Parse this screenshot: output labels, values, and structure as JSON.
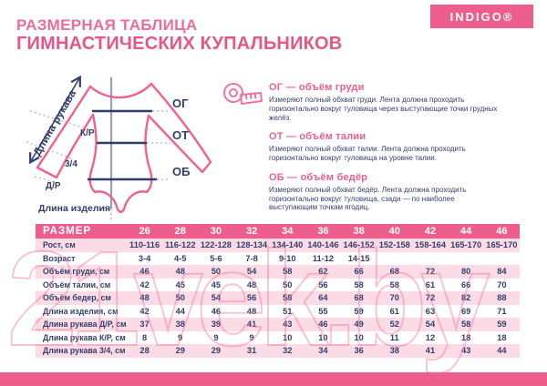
{
  "header": {
    "title_line1": "РАЗМЕРНАЯ ТАБЛИЦА",
    "title_line2": "ГИМНАСТИЧЕСКИХ КУПАЛЬНИКОВ",
    "brand": "INDIGO®"
  },
  "diagram": {
    "sleeve_length_label": "Длина рукава",
    "chest_label": "ОГ",
    "waist_label": "ОТ",
    "hips_label": "ОБ",
    "short_sleeve_label": "К/Р",
    "three_quarter_label": "3/4",
    "long_sleeve_label": "Д/Р",
    "item_length_label": "Длина изделия"
  },
  "measurements": [
    {
      "heading": "ОГ — объём груди",
      "body": "Измеряют полный обхват груди. Лента должна проходить горизонтально вокруг туловища через выступающие точки грудных желёз."
    },
    {
      "heading": "ОТ — объём талии",
      "body": "Измеряют полный обхват талии. Лента должна проходить горизонтально вокруг туловища на уровне талии."
    },
    {
      "heading": "ОБ — объём бедёр",
      "body": "Измеряют полный обхват бедёр. Лента должна проходить горизонтально вокруг туловища, сзади — по наиболее выступающим точкам ягодиц."
    }
  ],
  "table": {
    "header_label": "РАЗМЕР",
    "sizes": [
      "26",
      "28",
      "30",
      "32",
      "34",
      "36",
      "38",
      "40",
      "42",
      "44",
      "46"
    ],
    "rows": [
      {
        "label": "Рост, см",
        "values": [
          "110-116",
          "116-122",
          "122-128",
          "128-134",
          "134-140",
          "140-146",
          "146-152",
          "152-158",
          "158-164",
          "165-170",
          "165-170"
        ]
      },
      {
        "label": "Возраст",
        "values": [
          "3-4",
          "4-5",
          "5-6",
          "7-8",
          "9-10",
          "11-12",
          "14-15",
          "",
          "",
          "",
          ""
        ]
      },
      {
        "label": "Объём груди, см",
        "values": [
          "46",
          "48",
          "50",
          "54",
          "58",
          "62",
          "66",
          "68",
          "72",
          "80",
          "84"
        ]
      },
      {
        "label": "Объём талии, см",
        "values": [
          "42",
          "45",
          "45",
          "48",
          "50",
          "56",
          "58",
          "58",
          "61",
          "66",
          "70"
        ]
      },
      {
        "label": "Объём бедер, см",
        "values": [
          "48",
          "50",
          "54",
          "56",
          "58",
          "64",
          "68",
          "70",
          "72",
          "82",
          "88"
        ]
      },
      {
        "label": "Длина изделия, см",
        "values": [
          "42",
          "44",
          "46",
          "48",
          "51",
          "55",
          "59",
          "61",
          "63",
          "69",
          "71"
        ]
      },
      {
        "label": "Длина рукава Д/Р, см",
        "values": [
          "37",
          "38",
          "39",
          "41",
          "43",
          "46",
          "49",
          "52",
          "54",
          "58",
          "59"
        ]
      },
      {
        "label": "Длина рукава К/Р, см",
        "values": [
          "8",
          "9",
          "9",
          "9",
          "10",
          "10",
          "10",
          "11",
          "12",
          "18",
          "18"
        ]
      },
      {
        "label": "Длина рукава 3/4, см",
        "values": [
          "28",
          "29",
          "29",
          "31",
          "32",
          "34",
          "36",
          "38",
          "41",
          "43",
          "44"
        ]
      }
    ]
  },
  "watermark": {
    "text": "21vek.by"
  },
  "colors": {
    "accent": "#ee5e8d",
    "accent-light": "#f0739c",
    "row-pink": "#fbdbe5",
    "navy": "#333e6b",
    "line-navy": "#2f3c6c",
    "grey-line": "#93a0bd",
    "dotted": "#a9b1c8",
    "wm": "#f2a3c0"
  }
}
